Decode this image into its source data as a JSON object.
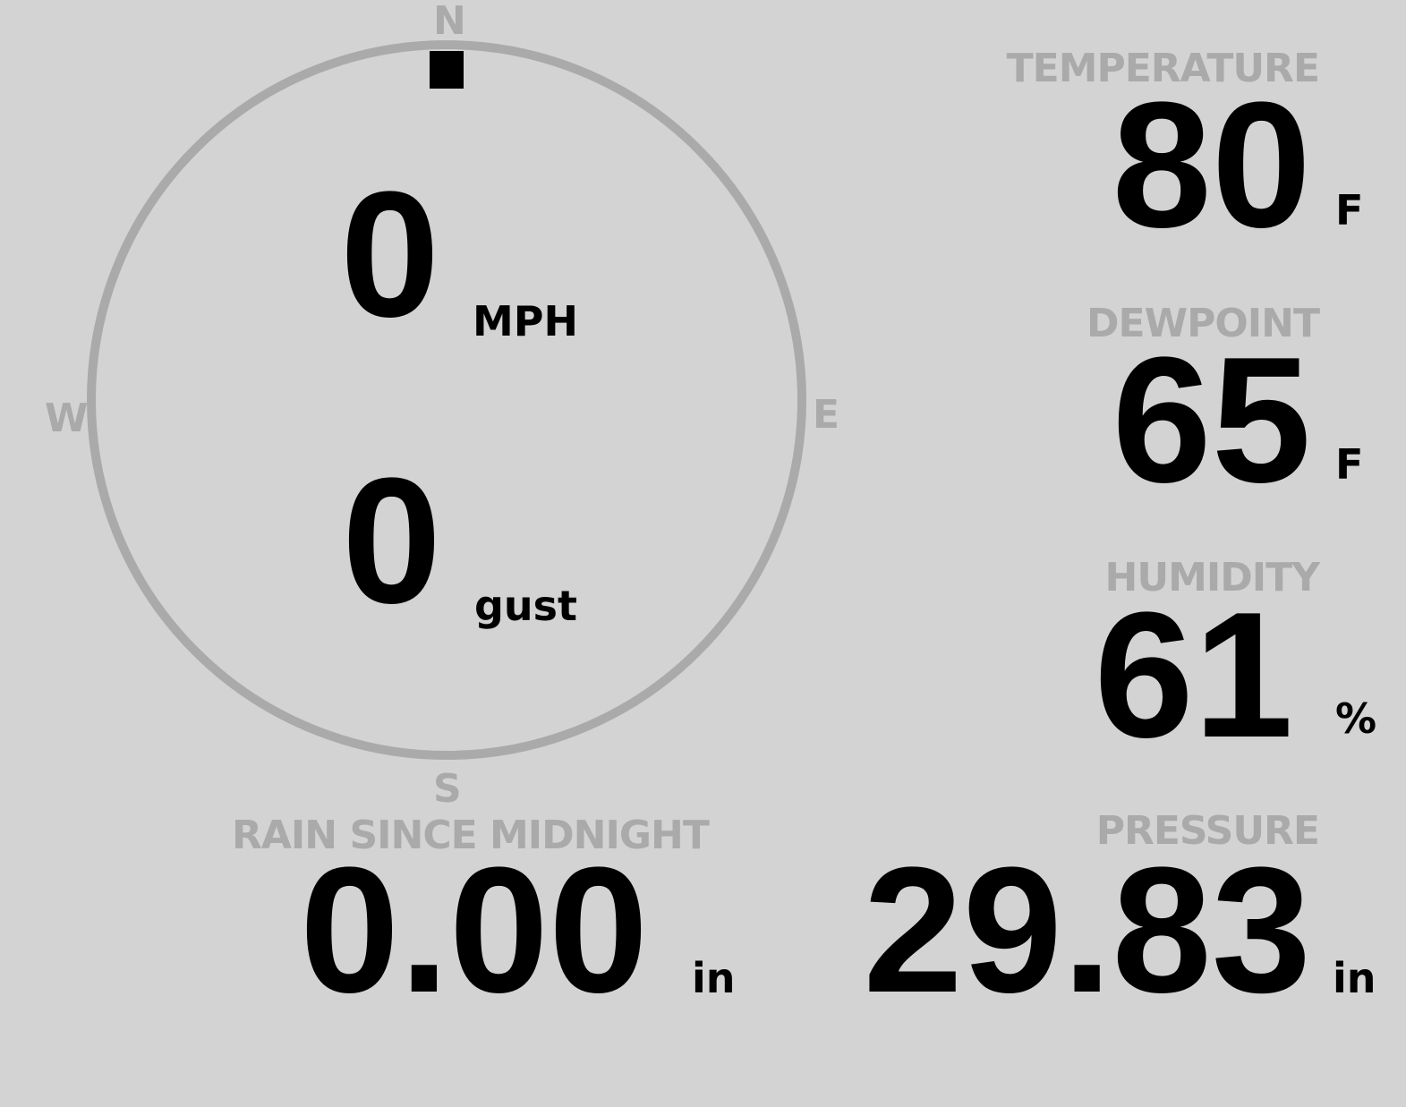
{
  "wind": {
    "compass": {
      "north": "N",
      "south": "S",
      "east": "E",
      "west": "W"
    },
    "direction_deg": 0,
    "speed": "0",
    "speed_unit": "MPH",
    "gust": "0",
    "gust_unit": "gust"
  },
  "temperature": {
    "label": "TEMPERATURE",
    "value": "80",
    "unit": "F"
  },
  "dewpoint": {
    "label": "DEWPOINT",
    "value": "65",
    "unit": "F"
  },
  "humidity": {
    "label": "HUMIDITY",
    "value": "61",
    "unit": "%"
  },
  "rain": {
    "label": "RAIN SINCE MIDNIGHT",
    "value": "0.00",
    "unit": "in"
  },
  "pressure": {
    "label": "PRESSURE",
    "value": "29.83",
    "unit": "in"
  },
  "colors": {
    "background": "#d3d3d3",
    "label": "#aaaaaa",
    "value": "#000000"
  }
}
